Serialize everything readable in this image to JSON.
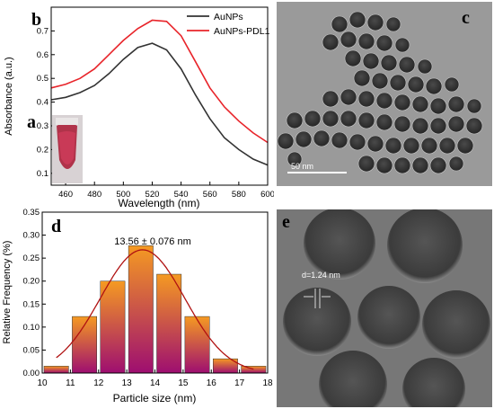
{
  "colors": {
    "auNPs": "#333333",
    "auNPsPDL1": "#e8242a",
    "fitCurve": "#b01212",
    "barTop": "#f59a22",
    "barBottom": "#9e0e70",
    "temBackground": "#9a9a9a",
    "particle": "#3a3a3a",
    "hrtemBackground": "#6a6a6a"
  },
  "panels": {
    "b": {
      "label": "b"
    },
    "a": {
      "label": "a"
    },
    "c": {
      "label": "c",
      "scalebar": "50 nm"
    },
    "d": {
      "label": "d"
    },
    "e": {
      "label": "e",
      "annotation": "d=1.24 nm"
    }
  },
  "chart_data": [
    {
      "id": "b",
      "type": "line",
      "title": "",
      "xlabel": "Wavelength (nm)",
      "ylabel": "Absorbance (a.u.)",
      "xlim": [
        450,
        600
      ],
      "ylim": [
        0.05,
        0.8
      ],
      "xticks": [
        460,
        480,
        500,
        520,
        540,
        560,
        580,
        600
      ],
      "yticks": [
        0.1,
        0.2,
        0.3,
        0.4,
        0.5,
        0.6,
        0.7
      ],
      "legend_position": "top-right",
      "series": [
        {
          "name": "AuNPs",
          "color": "#333333",
          "x": [
            450,
            460,
            470,
            480,
            490,
            500,
            510,
            520,
            530,
            540,
            550,
            560,
            570,
            580,
            590,
            600
          ],
          "y": [
            0.41,
            0.42,
            0.44,
            0.47,
            0.52,
            0.58,
            0.63,
            0.648,
            0.62,
            0.54,
            0.43,
            0.33,
            0.25,
            0.2,
            0.16,
            0.135
          ]
        },
        {
          "name": "AuNPs-PDL1",
          "color": "#e8242a",
          "x": [
            450,
            460,
            470,
            480,
            490,
            500,
            510,
            520,
            530,
            540,
            550,
            560,
            570,
            580,
            590,
            600
          ],
          "y": [
            0.46,
            0.475,
            0.5,
            0.54,
            0.6,
            0.66,
            0.71,
            0.745,
            0.74,
            0.68,
            0.57,
            0.46,
            0.38,
            0.32,
            0.27,
            0.23
          ]
        }
      ]
    },
    {
      "id": "d",
      "type": "bar",
      "title": "",
      "xlabel": "Particle size (nm)",
      "ylabel": "Relative Frequency (%)",
      "xlim": [
        10,
        18
      ],
      "ylim": [
        0,
        0.35
      ],
      "xticks": [
        10,
        11,
        12,
        13,
        14,
        15,
        16,
        17,
        18
      ],
      "yticks": [
        0.0,
        0.05,
        0.1,
        0.15,
        0.2,
        0.25,
        0.3,
        0.35
      ],
      "annotation": "13.56 ± 0.076 nm",
      "bins": [
        {
          "x": 10.5,
          "value": 0.015
        },
        {
          "x": 11.5,
          "value": 0.123
        },
        {
          "x": 12.5,
          "value": 0.2
        },
        {
          "x": 13.5,
          "value": 0.277
        },
        {
          "x": 14.5,
          "value": 0.215
        },
        {
          "x": 15.5,
          "value": 0.123
        },
        {
          "x": 16.5,
          "value": 0.031
        },
        {
          "x": 17.5,
          "value": 0.015
        }
      ],
      "bin_width": 1,
      "fit": {
        "type": "gaussian",
        "mean": 13.56,
        "sigma": 1.5,
        "amplitude": 0.268
      }
    }
  ]
}
